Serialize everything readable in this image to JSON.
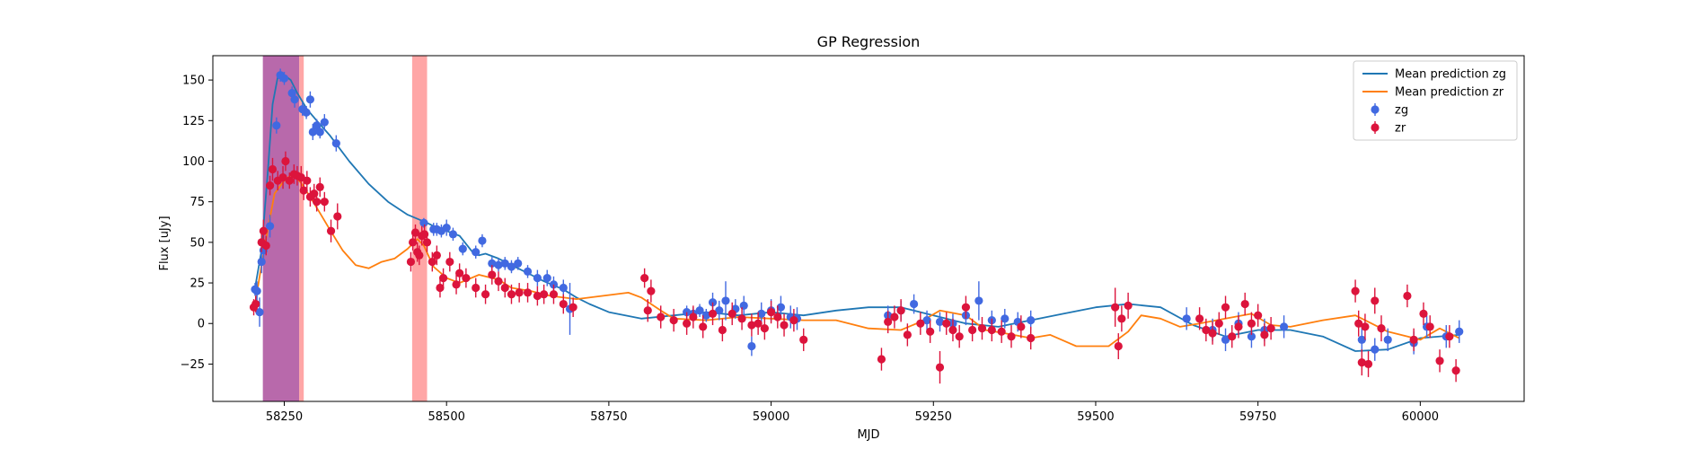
{
  "chart_data": {
    "type": "scatter",
    "title": "GP Regression",
    "xlabel": "MJD",
    "ylabel": "Flux [uJy]",
    "xlim": [
      58140,
      60160
    ],
    "ylim": [
      -48,
      165
    ],
    "xticks": [
      58250,
      58500,
      58750,
      59000,
      59250,
      59500,
      59750,
      60000
    ],
    "yticks": [
      -25,
      0,
      25,
      50,
      75,
      100,
      125,
      150
    ],
    "grid": false,
    "legend_position": "top-right",
    "colors": {
      "zg_line": "#1f77b4",
      "zr_line": "#ff7f0e",
      "zg_points": "#4169e1",
      "zr_points": "#dc143c",
      "span_purple": "#9c2f8a",
      "span_red": "#ff6b6b"
    },
    "legend": [
      {
        "label": "Mean prediction zg",
        "kind": "line",
        "color": "#1f77b4"
      },
      {
        "label": "Mean prediction zr",
        "kind": "line",
        "color": "#ff7f0e"
      },
      {
        "label": "zg",
        "kind": "errorbar",
        "color": "#4169e1"
      },
      {
        "label": "zr",
        "kind": "errorbar",
        "color": "#dc143c"
      }
    ],
    "spans": [
      {
        "x0": 58217,
        "x1": 58273,
        "color": "#9c2f8a",
        "opacity": 0.72
      },
      {
        "x0": 58273,
        "x1": 58280,
        "color": "#ff6b6b",
        "opacity": 0.6
      },
      {
        "x0": 58447,
        "x1": 58470,
        "color": "#ff6b6b",
        "opacity": 0.6
      }
    ],
    "series": [
      {
        "name": "Mean prediction zg",
        "type": "line",
        "color": "#1f77b4",
        "x": [
          58205,
          58215,
          58225,
          58232,
          58240,
          58250,
          58260,
          58270,
          58285,
          58300,
          58320,
          58350,
          58380,
          58410,
          58440,
          58470,
          58480,
          58500,
          58520,
          58540,
          58550,
          58560,
          58580,
          58600,
          58630,
          58650,
          58680,
          58700,
          58720,
          58750,
          58800,
          58850,
          58900,
          58950,
          59000,
          59050,
          59100,
          59150,
          59200,
          59250,
          59300,
          59350,
          59400,
          59450,
          59500,
          59550,
          59600,
          59650,
          59700,
          59750,
          59800,
          59850,
          59900,
          59950,
          60000,
          60060
        ],
        "y": [
          22,
          45,
          95,
          135,
          152,
          153,
          150,
          142,
          132,
          125,
          116,
          100,
          86,
          75,
          67,
          62,
          60,
          57,
          54,
          44,
          42,
          43,
          40,
          36,
          30,
          26,
          21,
          16,
          12,
          7,
          3,
          5,
          7,
          5,
          7,
          5,
          8,
          10,
          10,
          5,
          0,
          -2,
          2,
          6,
          10,
          12,
          10,
          -1,
          -8,
          -4,
          -4,
          -8,
          -17,
          -16,
          -9,
          -7
        ]
      },
      {
        "name": "Mean prediction zr",
        "type": "line",
        "color": "#ff7f0e",
        "x": [
          58205,
          58220,
          58235,
          58250,
          58262,
          58275,
          58290,
          58305,
          58320,
          58340,
          58360,
          58380,
          58400,
          58420,
          58440,
          58455,
          58465,
          58480,
          58500,
          58520,
          58550,
          58580,
          58600,
          58630,
          58660,
          58700,
          58740,
          58780,
          58800,
          58830,
          58850,
          58900,
          58950,
          59000,
          59050,
          59100,
          59150,
          59200,
          59230,
          59260,
          59300,
          59330,
          59360,
          59400,
          59430,
          59470,
          59520,
          59550,
          59570,
          59600,
          59630,
          59660,
          59700,
          59740,
          59770,
          59800,
          59850,
          59900,
          59950,
          60000,
          60030,
          60060
        ],
        "y": [
          12,
          48,
          80,
          88,
          92,
          87,
          78,
          68,
          58,
          45,
          36,
          34,
          38,
          40,
          46,
          52,
          48,
          35,
          28,
          25,
          30,
          27,
          22,
          20,
          17,
          15,
          17,
          19,
          16,
          8,
          3,
          2,
          4,
          3,
          2,
          2,
          -3,
          -4,
          1,
          8,
          5,
          -4,
          -6,
          -9,
          -7,
          -14,
          -14,
          -5,
          5,
          3,
          -2,
          0,
          3,
          6,
          -1,
          -2,
          2,
          5,
          -5,
          -10,
          -3,
          -9
        ]
      },
      {
        "name": "zg",
        "type": "errorbar",
        "color": "#4169e1",
        "x": [
          58205,
          58208,
          58212,
          58215,
          58218,
          58228,
          58238,
          58244,
          58250,
          58262,
          58266,
          58278,
          58284,
          58290,
          58294,
          58300,
          58305,
          58312,
          58330,
          58465,
          58480,
          58485,
          58492,
          58500,
          58510,
          58525,
          58545,
          58555,
          58570,
          58580,
          58590,
          58600,
          58610,
          58625,
          58640,
          58655,
          58665,
          58680,
          58690,
          58870,
          58880,
          58890,
          58900,
          58910,
          58920,
          58930,
          58945,
          58958,
          58970,
          58985,
          59000,
          59015,
          59030,
          59040,
          59180,
          59200,
          59220,
          59240,
          59260,
          59280,
          59300,
          59320,
          59340,
          59360,
          59380,
          59400,
          59640,
          59680,
          59700,
          59720,
          59740,
          59760,
          59790,
          59910,
          59930,
          59950,
          59990,
          60010,
          60040,
          60060
        ],
        "y": [
          21,
          20,
          7,
          38,
          45,
          60,
          122,
          153,
          151,
          142,
          138,
          132,
          130,
          138,
          118,
          122,
          118,
          124,
          111,
          62,
          58,
          58,
          57,
          59,
          55,
          46,
          44,
          51,
          37,
          36,
          37,
          35,
          37,
          32,
          28,
          28,
          24,
          22,
          9,
          7,
          6,
          8,
          5,
          13,
          8,
          14,
          9,
          11,
          -14,
          6,
          8,
          10,
          4,
          3,
          5,
          8,
          12,
          2,
          1,
          0,
          5,
          14,
          2,
          3,
          1,
          2,
          3,
          -4,
          -10,
          0,
          -8,
          -4,
          -2,
          -10,
          -16,
          -10,
          -12,
          -2,
          -8,
          -5
        ],
        "yerr": [
          4,
          6,
          9,
          7,
          6,
          7,
          5,
          4,
          4,
          4,
          5,
          4,
          4,
          5,
          5,
          4,
          4,
          5,
          5,
          3,
          4,
          4,
          4,
          5,
          4,
          4,
          4,
          4,
          4,
          4,
          4,
          4,
          4,
          4,
          5,
          5,
          5,
          5,
          16,
          4,
          4,
          4,
          4,
          6,
          6,
          12,
          6,
          6,
          6,
          7,
          7,
          7,
          7,
          7,
          6,
          6,
          6,
          6,
          6,
          6,
          6,
          12,
          6,
          6,
          6,
          6,
          7,
          7,
          7,
          7,
          7,
          7,
          7,
          7,
          7,
          7,
          7,
          7,
          7,
          7
        ]
      },
      {
        "name": "zr",
        "type": "errorbar",
        "color": "#dc143c",
        "x": [
          58203,
          58206,
          58215,
          58218,
          58222,
          58228,
          58232,
          58240,
          58248,
          58252,
          58258,
          58265,
          58270,
          58276,
          58280,
          58285,
          58290,
          58296,
          58300,
          58305,
          58312,
          58322,
          58332,
          58445,
          58448,
          58452,
          58455,
          58458,
          58462,
          58466,
          58470,
          58478,
          58485,
          58490,
          58495,
          58505,
          58515,
          58520,
          58530,
          58545,
          58560,
          58570,
          58580,
          58590,
          58600,
          58612,
          58625,
          58640,
          58650,
          58665,
          58680,
          58695,
          58805,
          58810,
          58815,
          58830,
          58850,
          58870,
          58880,
          58895,
          58910,
          58925,
          58940,
          58955,
          58970,
          58980,
          58990,
          59000,
          59010,
          59020,
          59035,
          59050,
          59170,
          59180,
          59190,
          59200,
          59210,
          59230,
          59245,
          59260,
          59270,
          59280,
          59290,
          59300,
          59310,
          59325,
          59340,
          59355,
          59370,
          59385,
          59400,
          59530,
          59535,
          59540,
          59550,
          59660,
          59670,
          59680,
          59690,
          59700,
          59710,
          59720,
          59730,
          59740,
          59750,
          59760,
          59770,
          59900,
          59905,
          59910,
          59915,
          59920,
          59930,
          59940,
          59980,
          59990,
          60005,
          60015,
          60030,
          60045,
          60055
        ],
        "y": [
          10,
          12,
          50,
          57,
          48,
          85,
          95,
          88,
          90,
          100,
          88,
          92,
          91,
          90,
          82,
          88,
          78,
          80,
          75,
          84,
          75,
          57,
          66,
          38,
          50,
          56,
          44,
          42,
          54,
          55,
          50,
          38,
          42,
          22,
          28,
          38,
          24,
          31,
          28,
          22,
          18,
          30,
          26,
          22,
          18,
          19,
          19,
          17,
          18,
          18,
          12,
          10,
          28,
          8,
          20,
          4,
          2,
          0,
          4,
          -2,
          6,
          -4,
          6,
          3,
          -1,
          0,
          -3,
          7,
          4,
          -1,
          2,
          -10,
          -22,
          1,
          4,
          8,
          -7,
          0,
          -5,
          -27,
          0,
          -4,
          -8,
          10,
          -4,
          -3,
          -4,
          -5,
          -8,
          -2,
          -9,
          10,
          -14,
          3,
          11,
          3,
          -4,
          -6,
          0,
          10,
          -8,
          -2,
          12,
          0,
          5,
          -7,
          -3,
          20,
          0,
          -24,
          -2,
          -25,
          14,
          -3,
          17,
          -10,
          6,
          -2,
          -23,
          -8,
          -29
        ],
        "yerr": [
          5,
          5,
          6,
          7,
          6,
          6,
          7,
          6,
          7,
          6,
          5,
          6,
          6,
          7,
          6,
          6,
          6,
          6,
          6,
          6,
          6,
          7,
          8,
          6,
          5,
          5,
          6,
          6,
          6,
          6,
          6,
          6,
          6,
          6,
          6,
          6,
          6,
          6,
          6,
          6,
          6,
          6,
          6,
          6,
          6,
          6,
          6,
          6,
          6,
          6,
          6,
          6,
          6,
          7,
          7,
          7,
          7,
          7,
          7,
          7,
          7,
          7,
          7,
          7,
          7,
          7,
          7,
          7,
          7,
          7,
          7,
          7,
          7,
          7,
          7,
          7,
          7,
          7,
          7,
          10,
          7,
          7,
          7,
          7,
          7,
          7,
          7,
          7,
          7,
          7,
          7,
          12,
          8,
          8,
          8,
          7,
          7,
          7,
          7,
          7,
          7,
          7,
          7,
          7,
          7,
          7,
          7,
          7,
          8,
          8,
          8,
          8,
          8,
          8,
          7,
          7,
          7,
          7,
          7,
          7,
          7
        ]
      }
    ]
  }
}
